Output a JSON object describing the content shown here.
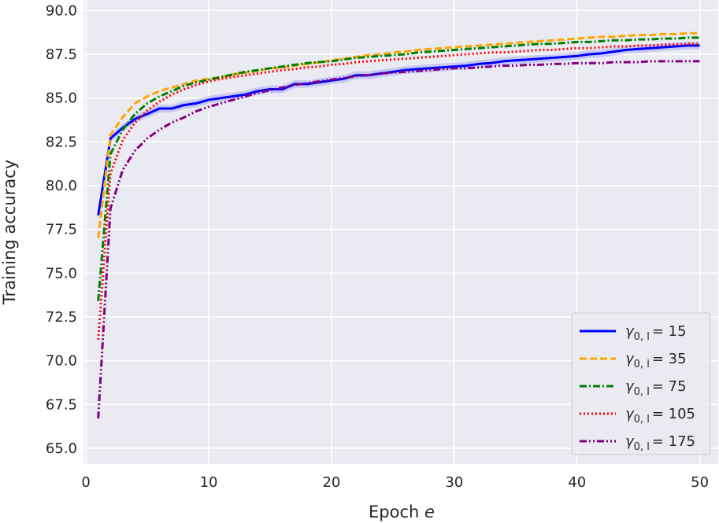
{
  "chart_data": {
    "type": "line",
    "title": "",
    "xlabel": "Epoch",
    "xlabel_var": "e",
    "ylabel": "Training accuracy",
    "xlim": [
      -0.2,
      51.5
    ],
    "ylim": [
      64.1,
      90.6
    ],
    "xticks": [
      0,
      10,
      20,
      30,
      40,
      50
    ],
    "yticks": [
      65.0,
      67.5,
      70.0,
      72.5,
      75.0,
      77.5,
      80.0,
      82.5,
      85.0,
      87.5,
      90.0
    ],
    "ytick_labels": [
      "65.0",
      "67.5",
      "70.0",
      "72.5",
      "75.0",
      "77.5",
      "80.0",
      "82.5",
      "85.0",
      "87.5",
      "90.0"
    ],
    "xtick_labels": [
      "0",
      "10",
      "20",
      "30",
      "40",
      "50"
    ],
    "grid": true,
    "legend_position": "bottom-right",
    "x": [
      1,
      2,
      3,
      4,
      5,
      6,
      7,
      8,
      9,
      10,
      11,
      12,
      13,
      14,
      15,
      16,
      17,
      18,
      19,
      20,
      21,
      22,
      23,
      24,
      25,
      26,
      27,
      28,
      29,
      30,
      31,
      32,
      33,
      34,
      35,
      36,
      37,
      38,
      39,
      40,
      41,
      42,
      43,
      44,
      45,
      46,
      47,
      48,
      49,
      50
    ],
    "series": [
      {
        "name_prefix": "γ",
        "name_sub": "0, l",
        "name_value": "= 15",
        "color": "#0000ff",
        "dash": "solid",
        "band": true,
        "values": [
          78.3,
          82.7,
          83.3,
          83.8,
          84.1,
          84.4,
          84.4,
          84.6,
          84.7,
          84.9,
          85.0,
          85.1,
          85.2,
          85.4,
          85.5,
          85.5,
          85.8,
          85.8,
          85.9,
          86.0,
          86.1,
          86.3,
          86.3,
          86.4,
          86.5,
          86.6,
          86.65,
          86.7,
          86.75,
          86.8,
          86.85,
          86.95,
          87.0,
          87.1,
          87.15,
          87.2,
          87.25,
          87.3,
          87.35,
          87.4,
          87.5,
          87.55,
          87.65,
          87.75,
          87.8,
          87.85,
          87.9,
          87.95,
          88.0,
          88.0
        ]
      },
      {
        "name_prefix": "γ",
        "name_sub": "0, l",
        "name_value": "= 35",
        "color": "#ffa500",
        "dash": "dashed",
        "band": false,
        "values": [
          77.0,
          82.9,
          83.9,
          84.7,
          85.1,
          85.4,
          85.6,
          85.8,
          86.0,
          86.1,
          86.2,
          86.35,
          86.45,
          86.55,
          86.7,
          86.75,
          86.85,
          86.95,
          87.05,
          87.15,
          87.25,
          87.35,
          87.45,
          87.5,
          87.6,
          87.65,
          87.75,
          87.8,
          87.85,
          87.9,
          87.95,
          88.0,
          88.05,
          88.1,
          88.15,
          88.2,
          88.25,
          88.3,
          88.35,
          88.4,
          88.45,
          88.5,
          88.5,
          88.55,
          88.6,
          88.6,
          88.65,
          88.65,
          88.7,
          88.7
        ]
      },
      {
        "name_prefix": "γ",
        "name_sub": "0, l",
        "name_value": "= 75",
        "color": "#008000",
        "dash": "dashdot",
        "band": false,
        "values": [
          73.4,
          81.8,
          83.2,
          84.1,
          84.7,
          85.1,
          85.4,
          85.7,
          85.9,
          86.05,
          86.2,
          86.35,
          86.5,
          86.6,
          86.7,
          86.8,
          86.9,
          87.0,
          87.05,
          87.1,
          87.2,
          87.3,
          87.35,
          87.4,
          87.45,
          87.5,
          87.6,
          87.65,
          87.7,
          87.75,
          87.8,
          87.85,
          87.9,
          87.95,
          88.0,
          88.05,
          88.1,
          88.1,
          88.15,
          88.2,
          88.2,
          88.25,
          88.3,
          88.3,
          88.35,
          88.35,
          88.4,
          88.4,
          88.45,
          88.45
        ]
      },
      {
        "name_prefix": "γ",
        "name_sub": "0, l",
        "name_value": "= 105",
        "color": "#ff0000",
        "dash": "dotted",
        "band": false,
        "values": [
          71.2,
          80.7,
          82.6,
          83.6,
          84.3,
          84.8,
          85.2,
          85.5,
          85.75,
          85.95,
          86.1,
          86.2,
          86.3,
          86.4,
          86.5,
          86.6,
          86.65,
          86.75,
          86.8,
          86.9,
          86.95,
          87.05,
          87.1,
          87.15,
          87.2,
          87.25,
          87.3,
          87.35,
          87.4,
          87.45,
          87.5,
          87.55,
          87.6,
          87.6,
          87.65,
          87.7,
          87.75,
          87.75,
          87.8,
          87.85,
          87.85,
          87.9,
          87.95,
          87.95,
          88.0,
          88.0,
          88.05,
          88.05,
          88.1,
          88.1
        ]
      },
      {
        "name_prefix": "γ",
        "name_sub": "0, l",
        "name_value": "= 175",
        "color": "#800080",
        "dash": "dashdotdot",
        "band": false,
        "values": [
          66.7,
          78.7,
          80.9,
          82.0,
          82.7,
          83.2,
          83.6,
          83.9,
          84.25,
          84.5,
          84.7,
          84.9,
          85.1,
          85.3,
          85.45,
          85.6,
          85.75,
          85.85,
          85.95,
          86.05,
          86.15,
          86.25,
          86.3,
          86.4,
          86.45,
          86.5,
          86.55,
          86.6,
          86.65,
          86.7,
          86.7,
          86.75,
          86.8,
          86.85,
          86.85,
          86.9,
          86.9,
          86.95,
          86.95,
          87.0,
          87.0,
          87.0,
          87.05,
          87.05,
          87.05,
          87.1,
          87.1,
          87.1,
          87.1,
          87.1
        ]
      }
    ]
  }
}
